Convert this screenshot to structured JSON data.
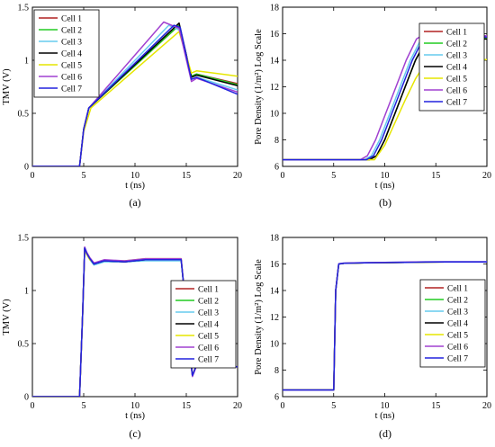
{
  "chart_data": [
    {
      "type": "line",
      "caption": "(a)",
      "xlabel": "t (ns)",
      "ylabel": "TMV (V)",
      "xlim": [
        0,
        20
      ],
      "ylim": [
        0,
        1.5
      ],
      "xticks": [
        0,
        5,
        10,
        15,
        20
      ],
      "yticks": [
        0,
        0.5,
        1,
        1.5
      ],
      "ytick_labels": [
        "0",
        "0.5",
        "1",
        "1.5"
      ],
      "legend_position": "top-left",
      "series": [
        {
          "name": "Cell 1",
          "color": "#b22222",
          "x": [
            0,
            4.6,
            5,
            5.5,
            14.3,
            15.5,
            16,
            20
          ],
          "y": [
            0,
            0,
            0.35,
            0.55,
            1.33,
            0.85,
            0.87,
            0.78
          ]
        },
        {
          "name": "Cell 2",
          "color": "#22cc22",
          "x": [
            0,
            4.6,
            5,
            5.5,
            14.3,
            15.5,
            16,
            20
          ],
          "y": [
            0,
            0,
            0.35,
            0.55,
            1.33,
            0.85,
            0.87,
            0.77
          ]
        },
        {
          "name": "Cell 3",
          "color": "#66ccee",
          "x": [
            0,
            4.6,
            5,
            5.5,
            13.3,
            14.4,
            15.5,
            16,
            20
          ],
          "y": [
            0,
            0,
            0.35,
            0.55,
            1.33,
            1.28,
            0.82,
            0.84,
            0.72
          ]
        },
        {
          "name": "Cell 4",
          "color": "#000000",
          "x": [
            0,
            4.6,
            5,
            5.5,
            14.3,
            15.5,
            16,
            20
          ],
          "y": [
            0,
            0,
            0.35,
            0.55,
            1.35,
            0.84,
            0.86,
            0.76
          ]
        },
        {
          "name": "Cell 5",
          "color": "#e6e600",
          "x": [
            0,
            4.6,
            5,
            5.7,
            14.3,
            15.5,
            16,
            20
          ],
          "y": [
            0,
            0,
            0.33,
            0.55,
            1.27,
            0.88,
            0.9,
            0.85
          ]
        },
        {
          "name": "Cell 6",
          "color": "#a040d0",
          "x": [
            0,
            4.6,
            5,
            5.5,
            12.8,
            14.3,
            15.5,
            16,
            20
          ],
          "y": [
            0,
            0,
            0.35,
            0.55,
            1.36,
            1.3,
            0.8,
            0.83,
            0.7
          ]
        },
        {
          "name": "Cell 7",
          "color": "#2222dd",
          "x": [
            0,
            4.6,
            5,
            5.5,
            13.8,
            14.4,
            15.5,
            16,
            20
          ],
          "y": [
            0,
            0,
            0.35,
            0.55,
            1.33,
            1.31,
            0.82,
            0.84,
            0.68
          ]
        }
      ]
    },
    {
      "type": "line",
      "caption": "(b)",
      "xlabel": "t (ns)",
      "ylabel": "Pore Density (1/m²) Log Scale",
      "xlim": [
        0,
        20
      ],
      "ylim": [
        6,
        18
      ],
      "xticks": [
        0,
        5,
        10,
        15,
        20
      ],
      "yticks": [
        6,
        8,
        10,
        12,
        14,
        16,
        18
      ],
      "legend_position": "top-right",
      "series": [
        {
          "name": "Cell 1",
          "color": "#b22222",
          "x": [
            0,
            8.5,
            9.2,
            10,
            11,
            12,
            13,
            14,
            14.6,
            15,
            20
          ],
          "y": [
            6.5,
            6.5,
            6.8,
            8,
            10,
            12,
            14,
            15.4,
            15.7,
            15.7,
            15.7
          ]
        },
        {
          "name": "Cell 2",
          "color": "#22cc22",
          "x": [
            0,
            8.5,
            9.2,
            10,
            11,
            12,
            13,
            14,
            14.6,
            15,
            20
          ],
          "y": [
            6.5,
            6.5,
            6.8,
            8,
            10,
            12,
            14,
            15.4,
            15.7,
            15.7,
            15.7
          ]
        },
        {
          "name": "Cell 3",
          "color": "#66ccee",
          "x": [
            0,
            8.0,
            8.7,
            9.5,
            10.5,
            11.5,
            12.5,
            13.5,
            14.1,
            20
          ],
          "y": [
            6.5,
            6.5,
            6.8,
            8,
            10,
            12,
            14,
            15.5,
            15.8,
            15.8
          ]
        },
        {
          "name": "Cell 4",
          "color": "#000000",
          "x": [
            0,
            8.5,
            9.2,
            10,
            11,
            12,
            13,
            14,
            14.6,
            15,
            20
          ],
          "y": [
            6.5,
            6.5,
            6.8,
            8,
            10,
            12,
            14,
            15.4,
            15.6,
            15.6,
            15.6
          ]
        },
        {
          "name": "Cell 5",
          "color": "#e6e600",
          "x": [
            0,
            9.0,
            10,
            11,
            12,
            13,
            14,
            14.7,
            20
          ],
          "y": [
            6.5,
            6.5,
            7.6,
            9.3,
            11,
            12.6,
            13.8,
            14.05,
            14.05
          ]
        },
        {
          "name": "Cell 6",
          "color": "#a040d0",
          "x": [
            0,
            7.6,
            8.3,
            9.1,
            10.1,
            11.1,
            12.1,
            13.1,
            13.6,
            20
          ],
          "y": [
            6.5,
            6.5,
            6.8,
            8,
            10,
            12,
            14,
            15.6,
            15.85,
            15.85
          ]
        },
        {
          "name": "Cell 7",
          "color": "#2222dd",
          "x": [
            0,
            8.2,
            8.9,
            9.7,
            10.7,
            11.7,
            12.7,
            13.7,
            14.3,
            20
          ],
          "y": [
            6.5,
            6.5,
            6.8,
            8,
            10,
            12,
            14,
            15.5,
            15.75,
            15.75
          ]
        }
      ]
    },
    {
      "type": "line",
      "caption": "(c)",
      "xlabel": "t (ns)",
      "ylabel": "TMV (V)",
      "xlim": [
        0,
        20
      ],
      "ylim": [
        0,
        1.5
      ],
      "xticks": [
        0,
        5,
        10,
        15,
        20
      ],
      "yticks": [
        0,
        0.5,
        1,
        1.5
      ],
      "ytick_labels": [
        "0",
        "0.5",
        "1",
        "1.5"
      ],
      "legend_position": "bottom-right",
      "series": [
        {
          "name": "Cell 1",
          "color": "#b22222",
          "x": [
            0,
            4.6,
            4.9,
            5.1,
            5.3,
            5.6,
            6,
            7,
            9,
            11,
            13,
            14.5,
            15,
            15.3,
            15.6,
            16,
            17,
            18,
            19,
            20
          ],
          "y": [
            0,
            0,
            0.8,
            1.4,
            1.35,
            1.3,
            1.25,
            1.28,
            1.27,
            1.29,
            1.29,
            1.29,
            0.8,
            0.45,
            0.2,
            0.3,
            0.36,
            0.33,
            0.3,
            0.28
          ]
        },
        {
          "name": "Cell 2",
          "color": "#22cc22",
          "x": [
            0,
            4.6,
            4.9,
            5.1,
            5.3,
            5.6,
            6,
            7,
            9,
            11,
            13,
            14.5,
            15,
            15.3,
            15.6,
            16,
            17,
            18,
            19,
            20
          ],
          "y": [
            0,
            0,
            0.8,
            1.4,
            1.35,
            1.3,
            1.25,
            1.28,
            1.27,
            1.29,
            1.29,
            1.29,
            0.8,
            0.45,
            0.2,
            0.3,
            0.36,
            0.33,
            0.3,
            0.28
          ]
        },
        {
          "name": "Cell 3",
          "color": "#66ccee",
          "x": [
            0,
            4.6,
            4.9,
            5.1,
            5.3,
            5.6,
            6,
            7,
            9,
            11,
            13,
            14.5,
            15,
            15.3,
            15.6,
            16,
            17,
            18,
            19,
            20
          ],
          "y": [
            0,
            0,
            0.8,
            1.39,
            1.34,
            1.29,
            1.24,
            1.27,
            1.27,
            1.28,
            1.28,
            1.28,
            0.8,
            0.45,
            0.19,
            0.29,
            0.35,
            0.33,
            0.3,
            0.28
          ]
        },
        {
          "name": "Cell 4",
          "color": "#000000",
          "x": [
            0,
            4.6,
            4.9,
            5.1,
            5.3,
            5.6,
            6,
            7,
            9,
            11,
            13,
            14.5,
            15,
            15.3,
            15.6,
            16,
            17,
            18,
            19,
            20
          ],
          "y": [
            0,
            0,
            0.8,
            1.4,
            1.35,
            1.3,
            1.25,
            1.28,
            1.27,
            1.29,
            1.29,
            1.29,
            0.8,
            0.45,
            0.2,
            0.3,
            0.36,
            0.33,
            0.3,
            0.28
          ]
        },
        {
          "name": "Cell 5",
          "color": "#e6e600",
          "x": [
            0,
            4.6,
            4.9,
            5.1,
            5.3,
            5.6,
            6,
            7,
            9,
            11,
            13,
            14.5,
            15,
            15.3,
            15.6,
            16,
            17,
            18,
            19,
            20
          ],
          "y": [
            0,
            0,
            0.78,
            1.38,
            1.34,
            1.29,
            1.26,
            1.28,
            1.28,
            1.3,
            1.3,
            1.3,
            0.8,
            0.45,
            0.2,
            0.3,
            0.36,
            0.33,
            0.3,
            0.28
          ]
        },
        {
          "name": "Cell 6",
          "color": "#a040d0",
          "x": [
            0,
            4.6,
            4.9,
            5.1,
            5.3,
            5.6,
            6,
            7,
            9,
            11,
            13,
            14.5,
            15,
            15.3,
            15.6,
            16,
            17,
            18,
            19,
            20
          ],
          "y": [
            0,
            0,
            0.8,
            1.41,
            1.36,
            1.31,
            1.26,
            1.29,
            1.28,
            1.3,
            1.3,
            1.3,
            0.8,
            0.45,
            0.19,
            0.29,
            0.35,
            0.33,
            0.3,
            0.28
          ]
        },
        {
          "name": "Cell 7",
          "color": "#2222dd",
          "x": [
            0,
            4.6,
            4.9,
            5.1,
            5.3,
            5.6,
            6,
            7,
            9,
            11,
            13,
            14.5,
            15,
            15.3,
            15.6,
            16,
            17,
            18,
            19,
            20
          ],
          "y": [
            0,
            0,
            0.8,
            1.4,
            1.35,
            1.3,
            1.25,
            1.28,
            1.27,
            1.29,
            1.29,
            1.29,
            0.8,
            0.45,
            0.2,
            0.3,
            0.36,
            0.33,
            0.3,
            0.28
          ]
        }
      ]
    },
    {
      "type": "line",
      "caption": "(d)",
      "xlabel": "t (ns)",
      "ylabel": "Pore Density (1/m²) Log Scale",
      "xlim": [
        0,
        20
      ],
      "ylim": [
        6,
        18
      ],
      "xticks": [
        0,
        5,
        10,
        15,
        20
      ],
      "yticks": [
        6,
        8,
        10,
        12,
        14,
        16,
        18
      ],
      "legend_position": "bottom-right",
      "series": [
        {
          "name": "Cell 1",
          "color": "#b22222",
          "x": [
            0,
            5.0,
            5.2,
            5.5,
            6,
            8,
            10,
            12,
            14,
            16,
            18,
            20
          ],
          "y": [
            6.5,
            6.5,
            14,
            16.0,
            16.05,
            16.08,
            16.1,
            16.12,
            16.14,
            16.15,
            16.15,
            16.15
          ]
        },
        {
          "name": "Cell 2",
          "color": "#22cc22",
          "x": [
            0,
            5.0,
            5.2,
            5.5,
            6,
            8,
            10,
            12,
            14,
            16,
            18,
            20
          ],
          "y": [
            6.5,
            6.5,
            14,
            16.0,
            16.05,
            16.08,
            16.1,
            16.12,
            16.14,
            16.15,
            16.15,
            16.15
          ]
        },
        {
          "name": "Cell 3",
          "color": "#66ccee",
          "x": [
            0,
            5.0,
            5.2,
            5.5,
            6,
            8,
            10,
            12,
            14,
            16,
            18,
            20
          ],
          "y": [
            6.5,
            6.5,
            14,
            16.02,
            16.07,
            16.1,
            16.12,
            16.14,
            16.16,
            16.17,
            16.17,
            16.17
          ]
        },
        {
          "name": "Cell 4",
          "color": "#000000",
          "x": [
            0,
            5.0,
            5.2,
            5.5,
            6,
            8,
            10,
            12,
            14,
            16,
            18,
            20
          ],
          "y": [
            6.5,
            6.5,
            14,
            16.0,
            16.05,
            16.08,
            16.1,
            16.12,
            16.14,
            16.15,
            16.15,
            16.15
          ]
        },
        {
          "name": "Cell 5",
          "color": "#e6e600",
          "x": [
            0,
            5.0,
            5.2,
            5.5,
            6,
            8,
            10,
            12,
            14,
            16,
            18,
            20
          ],
          "y": [
            6.5,
            6.5,
            14,
            16.0,
            16.05,
            16.08,
            16.1,
            16.12,
            16.14,
            16.15,
            16.15,
            16.15
          ]
        },
        {
          "name": "Cell 6",
          "color": "#a040d0",
          "x": [
            0,
            5.0,
            5.2,
            5.5,
            6,
            8,
            10,
            12,
            14,
            16,
            18,
            20
          ],
          "y": [
            6.5,
            6.5,
            14,
            16.02,
            16.07,
            16.1,
            16.12,
            16.14,
            16.16,
            16.17,
            16.17,
            16.17
          ]
        },
        {
          "name": "Cell 7",
          "color": "#2222dd",
          "x": [
            0,
            5.0,
            5.2,
            5.5,
            6,
            8,
            10,
            12,
            14,
            16,
            18,
            20
          ],
          "y": [
            6.5,
            6.5,
            14,
            16.0,
            16.05,
            16.08,
            16.1,
            16.12,
            16.14,
            16.15,
            16.15,
            16.15
          ]
        }
      ]
    }
  ]
}
